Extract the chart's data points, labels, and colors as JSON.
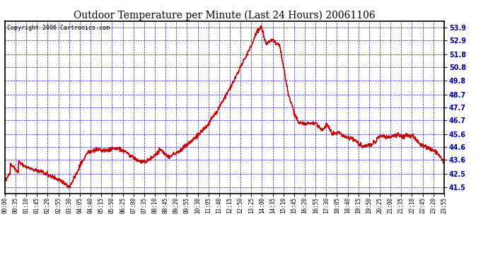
{
  "title": "Outdoor Temperature per Minute (Last 24 Hours) 20061106",
  "copyright": "Copyright 2006 Cartronics.com",
  "background_color": "#FFFFFF",
  "plot_bg_color": "#FFFFFF",
  "line_color": "#CC0000",
  "grid_color": "#0000BB",
  "border_color": "#000000",
  "title_color": "#000000",
  "y_ticks": [
    41.5,
    42.5,
    43.6,
    44.6,
    45.6,
    46.7,
    47.7,
    48.7,
    49.8,
    50.8,
    51.8,
    52.9,
    53.9
  ],
  "ylim": [
    41.0,
    54.4
  ],
  "x_tick_labels": [
    "00:00",
    "00:35",
    "01:10",
    "01:45",
    "02:20",
    "02:55",
    "03:30",
    "04:05",
    "04:40",
    "05:15",
    "05:50",
    "06:25",
    "07:00",
    "07:35",
    "08:10",
    "08:45",
    "09:20",
    "09:55",
    "10:30",
    "11:05",
    "11:40",
    "12:15",
    "12:50",
    "13:25",
    "14:00",
    "14:35",
    "15:10",
    "15:45",
    "16:20",
    "16:55",
    "17:30",
    "18:05",
    "18:40",
    "19:15",
    "19:50",
    "20:25",
    "21:00",
    "21:35",
    "22:10",
    "22:45",
    "23:20",
    "23:55"
  ],
  "line_width": 1.2,
  "title_fontsize": 10,
  "tick_fontsize": 7,
  "copyright_fontsize": 6
}
